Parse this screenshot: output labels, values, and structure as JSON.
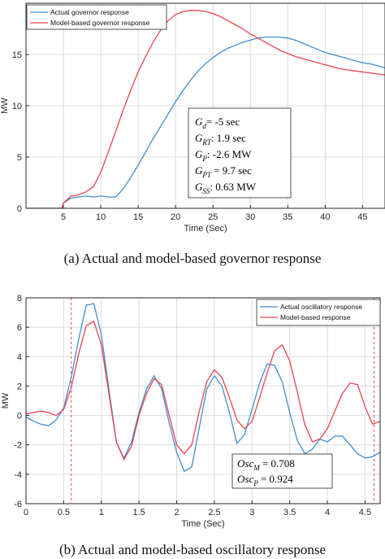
{
  "chart_data": [
    {
      "type": "line",
      "caption": "(a)  Actual and model-based governor response",
      "xlabel": "Time (Sec)",
      "ylabel": "MW",
      "xlim": [
        0,
        48
      ],
      "ylim": [
        0,
        20
      ],
      "xticks": [
        5,
        10,
        15,
        20,
        25,
        30,
        35,
        40,
        45
      ],
      "yticks": [
        0,
        5,
        10,
        15
      ],
      "grid": true,
      "legend_position": "top-left",
      "series": [
        {
          "name": "Actual governor response",
          "color": "#3f8fd0",
          "x": [
            0,
            4.8,
            5,
            6,
            7,
            8,
            9,
            10,
            11,
            12,
            13,
            14,
            15,
            16,
            17,
            18,
            19,
            20,
            21,
            22,
            23,
            24,
            25,
            26,
            27,
            28,
            29,
            30,
            31,
            32,
            33,
            34,
            35,
            36,
            37,
            38,
            39,
            40,
            41,
            42,
            43,
            44,
            45,
            46,
            47,
            48
          ],
          "y": [
            0,
            0,
            0.5,
            1.0,
            1.1,
            1.2,
            1.1,
            1.2,
            1.1,
            1.1,
            1.9,
            3.0,
            4.2,
            5.5,
            6.8,
            8.0,
            9.2,
            10.4,
            11.5,
            12.5,
            13.4,
            14.1,
            14.7,
            15.2,
            15.6,
            15.9,
            16.2,
            16.4,
            16.6,
            16.7,
            16.7,
            16.7,
            16.6,
            16.4,
            16.1,
            15.8,
            15.5,
            15.2,
            15.0,
            14.8,
            14.6,
            14.4,
            14.2,
            14.1,
            13.9,
            13.7
          ]
        },
        {
          "name": "Model-based governor response",
          "color": "#e8454f",
          "x": [
            0,
            4.8,
            5,
            6,
            7,
            8,
            9,
            10,
            11,
            12,
            13,
            14,
            15,
            16,
            17,
            18,
            19,
            20,
            21,
            22,
            23,
            24,
            25,
            26,
            27,
            28,
            29,
            30,
            31,
            32,
            33,
            34,
            35,
            36,
            37,
            38,
            39,
            40,
            41,
            42,
            43,
            44,
            45,
            46,
            47,
            48
          ],
          "y": [
            0,
            0,
            0.5,
            1.2,
            1.3,
            1.6,
            2.1,
            3.5,
            5.5,
            7.5,
            9.6,
            11.5,
            13.3,
            14.8,
            16.2,
            17.4,
            18.3,
            18.9,
            19.2,
            19.3,
            19.3,
            19.2,
            19.0,
            18.7,
            18.3,
            17.9,
            17.5,
            17.0,
            16.6,
            16.2,
            15.8,
            15.4,
            15.1,
            14.8,
            14.6,
            14.4,
            14.2,
            14.0,
            13.8,
            13.6,
            13.5,
            13.4,
            13.3,
            13.2,
            13.1,
            13.0
          ]
        }
      ],
      "annotation": [
        {
          "sym": "G",
          "sub": "d",
          "val": "= -5 sec"
        },
        {
          "sym": "G",
          "sub": "RT",
          "val": ": 1.9 sec"
        },
        {
          "sym": "G",
          "sub": "P",
          "val": ": -2.6 MW"
        },
        {
          "sym": "G",
          "sub": "PT",
          "val": " = 9.7 sec"
        },
        {
          "sym": "G",
          "sub": "SS",
          "val": ": 0.63 MW"
        }
      ]
    },
    {
      "type": "line",
      "caption": "(b)  Actual and model-based oscillatory response",
      "xlabel": "Time (Sec)",
      "ylabel": "MW",
      "xlim": [
        0,
        4.7
      ],
      "ylim": [
        -6,
        8
      ],
      "xticks": [
        0,
        0.5,
        1,
        1.5,
        2,
        2.5,
        3,
        3.5,
        4,
        4.5
      ],
      "yticks": [
        -6,
        -4,
        -2,
        0,
        2,
        4,
        6,
        8
      ],
      "grid": true,
      "legend_position": "top-right",
      "vlines": [
        0.6,
        4.62
      ],
      "series": [
        {
          "name": "Actual oscillatory response",
          "color": "#3f8fd0",
          "x": [
            0,
            0.1,
            0.2,
            0.3,
            0.4,
            0.5,
            0.6,
            0.7,
            0.8,
            0.9,
            1.0,
            1.1,
            1.2,
            1.3,
            1.4,
            1.5,
            1.6,
            1.7,
            1.8,
            1.9,
            2.0,
            2.1,
            2.2,
            2.3,
            2.4,
            2.5,
            2.6,
            2.7,
            2.8,
            2.9,
            3.0,
            3.1,
            3.2,
            3.3,
            3.4,
            3.5,
            3.6,
            3.7,
            3.8,
            3.9,
            4.0,
            4.1,
            4.2,
            4.3,
            4.4,
            4.5,
            4.6,
            4.7
          ],
          "y": [
            -0.1,
            -0.4,
            -0.6,
            -0.7,
            -0.3,
            0.5,
            2.6,
            5.2,
            7.5,
            7.6,
            5.5,
            1.8,
            -1.8,
            -2.9,
            -1.8,
            0.2,
            1.8,
            2.7,
            1.8,
            -0.5,
            -2.5,
            -3.8,
            -3.5,
            -0.8,
            1.8,
            2.7,
            2.0,
            0.2,
            -1.9,
            -1.3,
            0.4,
            2.2,
            3.5,
            3.4,
            2.3,
            0.2,
            -1.7,
            -2.6,
            -2.3,
            -1.6,
            -1.8,
            -1.4,
            -1.4,
            -2.0,
            -2.6,
            -2.9,
            -2.8,
            -2.5
          ]
        },
        {
          "name": "Model-based response",
          "color": "#e8454f",
          "x": [
            0,
            0.1,
            0.2,
            0.3,
            0.4,
            0.5,
            0.6,
            0.7,
            0.8,
            0.9,
            1.0,
            1.1,
            1.2,
            1.3,
            1.4,
            1.5,
            1.6,
            1.7,
            1.8,
            1.9,
            2.0,
            2.1,
            2.2,
            2.3,
            2.4,
            2.5,
            2.6,
            2.7,
            2.8,
            2.9,
            3.0,
            3.1,
            3.2,
            3.3,
            3.4,
            3.5,
            3.6,
            3.7,
            3.8,
            3.9,
            4.0,
            4.1,
            4.2,
            4.3,
            4.4,
            4.5,
            4.6,
            4.7
          ],
          "y": [
            0.1,
            0.2,
            0.3,
            0.2,
            0.0,
            0.4,
            1.9,
            4.2,
            6.1,
            6.4,
            4.8,
            1.5,
            -1.8,
            -3.0,
            -2.1,
            0.0,
            1.5,
            2.5,
            2.1,
            0.0,
            -2.0,
            -2.6,
            -2.0,
            0.3,
            2.3,
            3.1,
            2.6,
            1.2,
            -0.3,
            -0.9,
            -0.4,
            1.2,
            2.9,
            4.4,
            4.8,
            3.7,
            1.6,
            -0.6,
            -1.8,
            -1.6,
            -0.9,
            0.3,
            1.5,
            2.2,
            2.1,
            0.6,
            -0.6,
            -0.4
          ]
        }
      ],
      "annotation": [
        {
          "sym": "Osc",
          "sub": "M",
          "val": " = 0.708"
        },
        {
          "sym": "Osc",
          "sub": "P",
          "val": " = 0.924"
        }
      ]
    }
  ]
}
